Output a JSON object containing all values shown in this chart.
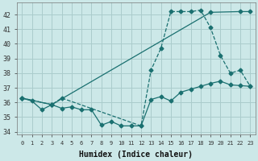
{
  "bg_color": "#cce8e8",
  "line_color": "#1a7070",
  "grid_color": "#aacccc",
  "xlabel": "Humidex (Indice chaleur)",
  "ylim": [
    33.8,
    42.8
  ],
  "xlim": [
    -0.5,
    23.5
  ],
  "yticks": [
    34,
    35,
    36,
    37,
    38,
    39,
    40,
    41,
    42
  ],
  "xticks": [
    0,
    1,
    2,
    3,
    4,
    5,
    6,
    7,
    8,
    9,
    10,
    11,
    12,
    13,
    14,
    15,
    16,
    17,
    18,
    19,
    20,
    21,
    22,
    23
  ],
  "line1_x": [
    0,
    1,
    2,
    3,
    4,
    5,
    6,
    7,
    8,
    9,
    10,
    11,
    12,
    13,
    14,
    15,
    16,
    17,
    18,
    19,
    20,
    21,
    22,
    23
  ],
  "line1_y": [
    36.3,
    36.1,
    35.5,
    35.85,
    35.6,
    35.7,
    35.5,
    35.5,
    34.45,
    34.7,
    34.4,
    34.4,
    34.4,
    36.2,
    36.4,
    36.1,
    36.7,
    36.9,
    37.1,
    37.3,
    37.45,
    37.2,
    37.15,
    37.1
  ],
  "line2_x": [
    0,
    3,
    4,
    12,
    13,
    14,
    15,
    16,
    17,
    18,
    19,
    20,
    21,
    22,
    23
  ],
  "line2_y": [
    36.3,
    35.85,
    36.3,
    34.4,
    38.2,
    39.7,
    42.2,
    42.2,
    42.2,
    42.3,
    41.1,
    39.2,
    38.0,
    38.2,
    37.1
  ],
  "line3_x": [
    0,
    3,
    19,
    22,
    23
  ],
  "line3_y": [
    36.3,
    35.85,
    42.15,
    42.2,
    42.2
  ]
}
